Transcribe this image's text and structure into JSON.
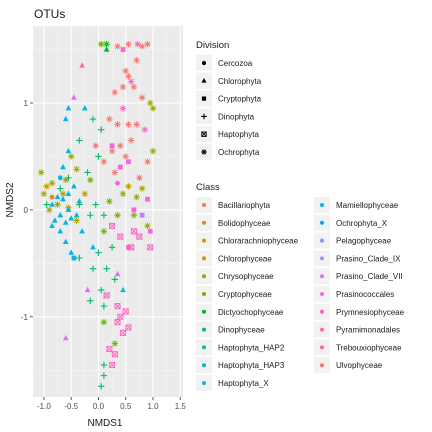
{
  "chart_data": {
    "type": "scatter",
    "title": "OTUs",
    "xlabel": "NMDS1",
    "ylabel": "NMDS2",
    "xlim": [
      -1.2,
      1.55
    ],
    "ylim": [
      -1.75,
      1.72
    ],
    "xticks": [
      -1.0,
      -0.5,
      0.0,
      0.5,
      1.0,
      1.5
    ],
    "xtick_labels": [
      "-1.0",
      "-0.5",
      "0.0",
      "0.5",
      "1.0",
      "1.5"
    ],
    "yticks": [
      -1,
      0,
      1
    ],
    "ytick_labels": [
      "-1",
      "0",
      "1"
    ],
    "grid": true,
    "legend_position": "right",
    "shape_legend": {
      "title": "Division",
      "items": [
        {
          "label": "Cercozoa",
          "shape": "circle"
        },
        {
          "label": "Chlorophyta",
          "shape": "triangle"
        },
        {
          "label": "Cryptophyta",
          "shape": "square"
        },
        {
          "label": "Dinophyta",
          "shape": "plus"
        },
        {
          "label": "Haptophyta",
          "shape": "boxed-x"
        },
        {
          "label": "Ochrophyta",
          "shape": "asterisk"
        }
      ]
    },
    "color_legend": {
      "title": "Class",
      "items": [
        {
          "label": "Bacillariophyta",
          "color": "#F8766D"
        },
        {
          "label": "Bolidophyceae",
          "color": "#E9842C"
        },
        {
          "label": "Chlorarachniophyceae",
          "color": "#D69100"
        },
        {
          "label": "Chlorophyceae",
          "color": "#BC9D00"
        },
        {
          "label": "Chrysophyceae",
          "color": "#9CA700"
        },
        {
          "label": "Cryptophyceae",
          "color": "#6FB000"
        },
        {
          "label": "Dictyochophyceae",
          "color": "#00B813"
        },
        {
          "label": "Dinophyceae",
          "color": "#00BD61"
        },
        {
          "label": "Haptophyta_HAP2",
          "color": "#00C08E"
        },
        {
          "label": "Haptophyta_HAP3",
          "color": "#00C0B4"
        },
        {
          "label": "Haptophyta_X",
          "color": "#00BDD4"
        },
        {
          "label": "Mamiellophyceae",
          "color": "#00B5EE"
        },
        {
          "label": "Ochrophyta_X",
          "color": "#00A7FF"
        },
        {
          "label": "Pelagophyceae",
          "color": "#7F96FF"
        },
        {
          "label": "Prasino_Clade_IX",
          "color": "#BC81FF"
        },
        {
          "label": "Prasino_Clade_VII",
          "color": "#E26EF7"
        },
        {
          "label": "Prasinococcales",
          "color": "#F863DF"
        },
        {
          "label": "Prymnesiophyceae",
          "color": "#FF62BF"
        },
        {
          "label": "Pyramimonadales",
          "color": "#FF6A9A"
        },
        {
          "label": "Trebouxiophyceae",
          "color": "#FF6C91"
        },
        {
          "label": "Ulvophyceae",
          "color": "#F8766D"
        }
      ]
    },
    "points": [
      {
        "x": 0.35,
        "y": 1.53,
        "shape": "asterisk",
        "color": "#F8766D"
      },
      {
        "x": 0.55,
        "y": 1.55,
        "shape": "asterisk",
        "color": "#F8766D"
      },
      {
        "x": 0.72,
        "y": 1.55,
        "shape": "asterisk",
        "color": "#FF62BF"
      },
      {
        "x": 0.8,
        "y": 1.53,
        "shape": "asterisk",
        "color": "#F8766D"
      },
      {
        "x": 0.9,
        "y": 1.55,
        "shape": "asterisk",
        "color": "#F8766D"
      },
      {
        "x": 0.7,
        "y": 1.4,
        "shape": "asterisk",
        "color": "#F8766D"
      },
      {
        "x": 0.05,
        "y": 1.55,
        "shape": "asterisk",
        "color": "#6FB000"
      },
      {
        "x": 0.15,
        "y": 1.55,
        "shape": "asterisk",
        "color": "#00B813"
      },
      {
        "x": 0.5,
        "y": 1.3,
        "shape": "asterisk",
        "color": "#F8766D"
      },
      {
        "x": 0.55,
        "y": 1.25,
        "shape": "asterisk",
        "color": "#F8766D"
      },
      {
        "x": 0.6,
        "y": 1.2,
        "shape": "asterisk",
        "color": "#FF62BF"
      },
      {
        "x": 0.45,
        "y": 1.15,
        "shape": "asterisk",
        "color": "#F8766D"
      },
      {
        "x": 0.3,
        "y": 1.1,
        "shape": "asterisk",
        "color": "#F8766D"
      },
      {
        "x": 0.65,
        "y": 1.15,
        "shape": "asterisk",
        "color": "#F8766D"
      },
      {
        "x": 0.8,
        "y": 1.05,
        "shape": "asterisk",
        "color": "#F8766D"
      },
      {
        "x": 0.95,
        "y": 1.0,
        "shape": "asterisk",
        "color": "#9CA700"
      },
      {
        "x": 1.0,
        "y": 0.95,
        "shape": "asterisk",
        "color": "#9CA700"
      },
      {
        "x": 0.45,
        "y": 0.95,
        "shape": "asterisk",
        "color": "#FF62BF"
      },
      {
        "x": 0.2,
        "y": 0.85,
        "shape": "asterisk",
        "color": "#F8766D"
      },
      {
        "x": 0.35,
        "y": 0.8,
        "shape": "asterisk",
        "color": "#F8766D"
      },
      {
        "x": 0.55,
        "y": 0.8,
        "shape": "asterisk",
        "color": "#F8766D"
      },
      {
        "x": 0.7,
        "y": 0.8,
        "shape": "asterisk",
        "color": "#F8766D"
      },
      {
        "x": 0.85,
        "y": 0.75,
        "shape": "asterisk",
        "color": "#FF62BF"
      },
      {
        "x": 0.25,
        "y": 0.55,
        "shape": "asterisk",
        "color": "#F8766D"
      },
      {
        "x": 0.4,
        "y": 0.6,
        "shape": "asterisk",
        "color": "#F8766D"
      },
      {
        "x": 0.6,
        "y": 0.65,
        "shape": "asterisk",
        "color": "#F8766D"
      },
      {
        "x": 0.1,
        "y": 0.45,
        "shape": "asterisk",
        "color": "#F8766D"
      },
      {
        "x": 0.5,
        "y": 0.5,
        "shape": "asterisk",
        "color": "#F8766D"
      },
      {
        "x": 0.3,
        "y": 0.35,
        "shape": "asterisk",
        "color": "#F8766D"
      },
      {
        "x": 0.9,
        "y": 0.45,
        "shape": "asterisk",
        "color": "#F8766D"
      },
      {
        "x": 1.0,
        "y": 0.55,
        "shape": "asterisk",
        "color": "#9CA700"
      },
      {
        "x": -0.05,
        "y": 0.6,
        "shape": "asterisk",
        "color": "#F8766D"
      },
      {
        "x": 0.75,
        "y": 0.3,
        "shape": "asterisk",
        "color": "#F8766D"
      },
      {
        "x": -0.5,
        "y": 0.5,
        "shape": "asterisk",
        "color": "#9CA700"
      },
      {
        "x": -0.4,
        "y": 0.38,
        "shape": "asterisk",
        "color": "#9CA700"
      },
      {
        "x": -0.15,
        "y": 0.28,
        "shape": "asterisk",
        "color": "#6FB000"
      },
      {
        "x": -1.05,
        "y": 0.35,
        "shape": "asterisk",
        "color": "#9CA700"
      },
      {
        "x": -0.95,
        "y": 0.22,
        "shape": "asterisk",
        "color": "#BC9D00"
      },
      {
        "x": -0.85,
        "y": 0.25,
        "shape": "asterisk",
        "color": "#9CA700"
      },
      {
        "x": -0.65,
        "y": 0.15,
        "shape": "asterisk",
        "color": "#9CA700"
      },
      {
        "x": -0.25,
        "y": 0.15,
        "shape": "asterisk",
        "color": "#BC9D00"
      },
      {
        "x": 0.45,
        "y": 0.15,
        "shape": "asterisk",
        "color": "#9CA700"
      },
      {
        "x": 0.55,
        "y": 0.22,
        "shape": "asterisk",
        "color": "#BC9D00"
      },
      {
        "x": 0.7,
        "y": 0.12,
        "shape": "asterisk",
        "color": "#9CA700"
      },
      {
        "x": 0.8,
        "y": 0.2,
        "shape": "asterisk",
        "color": "#9CA700"
      },
      {
        "x": 0.2,
        "y": 0.08,
        "shape": "asterisk",
        "color": "#6FB000"
      },
      {
        "x": -0.75,
        "y": 0.05,
        "shape": "asterisk",
        "color": "#9CA700"
      },
      {
        "x": -0.9,
        "y": 0.0,
        "shape": "asterisk",
        "color": "#9CA700"
      },
      {
        "x": -0.55,
        "y": 0.02,
        "shape": "asterisk",
        "color": "#BC9D00"
      },
      {
        "x": 0.35,
        "y": -0.05,
        "shape": "asterisk",
        "color": "#9CA700"
      },
      {
        "x": 0.65,
        "y": -0.05,
        "shape": "asterisk",
        "color": "#9CA700"
      },
      {
        "x": 0.9,
        "y": -0.15,
        "shape": "asterisk",
        "color": "#9CA700"
      },
      {
        "x": -0.4,
        "y": -0.1,
        "shape": "asterisk",
        "color": "#9CA700"
      },
      {
        "x": 0.1,
        "y": -0.2,
        "shape": "asterisk",
        "color": "#6FB000"
      },
      {
        "x": 0.3,
        "y": -1.25,
        "shape": "asterisk",
        "color": "#6FB000"
      },
      {
        "x": 0.1,
        "y": -1.05,
        "shape": "asterisk",
        "color": "#6FB000"
      },
      {
        "x": -0.6,
        "y": 0.28,
        "shape": "asterisk",
        "color": "#9CA700"
      },
      {
        "x": -1.0,
        "y": 0.15,
        "shape": "asterisk",
        "color": "#9CA700"
      },
      {
        "x": 0.15,
        "y": 1.5,
        "shape": "triangle",
        "color": "#00B813"
      },
      {
        "x": -0.3,
        "y": 1.35,
        "shape": "triangle",
        "color": "#FF6C91"
      },
      {
        "x": -0.45,
        "y": 1.05,
        "shape": "triangle",
        "color": "#E26EF7"
      },
      {
        "x": -0.55,
        "y": 0.95,
        "shape": "triangle",
        "color": "#00B5EE"
      },
      {
        "x": -0.25,
        "y": 0.95,
        "shape": "triangle",
        "color": "#00BDD4"
      },
      {
        "x": -0.6,
        "y": 0.85,
        "shape": "triangle",
        "color": "#00B5EE"
      },
      {
        "x": -0.55,
        "y": 0.55,
        "shape": "triangle",
        "color": "#00B5EE"
      },
      {
        "x": -0.65,
        "y": 0.4,
        "shape": "triangle",
        "color": "#00B5EE"
      },
      {
        "x": -0.8,
        "y": -0.1,
        "shape": "triangle",
        "color": "#00B5EE"
      },
      {
        "x": -0.7,
        "y": -0.05,
        "shape": "triangle",
        "color": "#00B5EE"
      },
      {
        "x": -0.6,
        "y": -0.12,
        "shape": "triangle",
        "color": "#00B5EE"
      },
      {
        "x": -0.5,
        "y": -0.08,
        "shape": "triangle",
        "color": "#00B5EE"
      },
      {
        "x": -0.4,
        "y": -0.05,
        "shape": "triangle",
        "color": "#00B5EE"
      },
      {
        "x": -0.65,
        "y": 0.1,
        "shape": "triangle",
        "color": "#00B5EE"
      },
      {
        "x": -0.55,
        "y": 0.15,
        "shape": "triangle",
        "color": "#00B5EE"
      },
      {
        "x": -0.75,
        "y": 0.12,
        "shape": "triangle",
        "color": "#00B5EE"
      },
      {
        "x": -0.85,
        "y": 0.05,
        "shape": "triangle",
        "color": "#00B5EE"
      },
      {
        "x": -0.35,
        "y": 0.08,
        "shape": "triangle",
        "color": "#00B5EE"
      },
      {
        "x": -0.45,
        "y": 0.22,
        "shape": "triangle",
        "color": "#00B5EE"
      },
      {
        "x": -0.7,
        "y": -0.2,
        "shape": "triangle",
        "color": "#00B5EE"
      },
      {
        "x": -0.85,
        "y": -0.15,
        "shape": "triangle",
        "color": "#00B5EE"
      },
      {
        "x": -0.6,
        "y": -0.3,
        "shape": "triangle",
        "color": "#00B5EE"
      },
      {
        "x": -0.5,
        "y": -0.4,
        "shape": "triangle",
        "color": "#00B5EE"
      },
      {
        "x": -0.6,
        "y": -1.2,
        "shape": "triangle",
        "color": "#E26EF7"
      },
      {
        "x": -0.2,
        "y": -0.75,
        "shape": "triangle",
        "color": "#E26EF7"
      },
      {
        "x": 0.35,
        "y": -0.6,
        "shape": "triangle",
        "color": "#E26EF7"
      },
      {
        "x": 0.45,
        "y": -0.75,
        "shape": "triangle",
        "color": "#00BDD4"
      },
      {
        "x": -0.1,
        "y": -0.35,
        "shape": "triangle",
        "color": "#00B5EE"
      },
      {
        "x": -0.3,
        "y": -0.2,
        "shape": "triangle",
        "color": "#00B5EE"
      },
      {
        "x": -0.55,
        "y": 0.0,
        "shape": "triangle",
        "color": "#00BDD4"
      },
      {
        "x": 0.45,
        "y": 1.5,
        "shape": "square",
        "color": "#F863DF"
      },
      {
        "x": 0.55,
        "y": 0.45,
        "shape": "square",
        "color": "#F863DF"
      },
      {
        "x": 0.4,
        "y": 0.4,
        "shape": "square",
        "color": "#F863DF"
      },
      {
        "x": 0.25,
        "y": 0.6,
        "shape": "square",
        "color": "#F863DF"
      },
      {
        "x": 0.65,
        "y": 0.0,
        "shape": "square",
        "color": "#F863DF"
      },
      {
        "x": 0.8,
        "y": -0.05,
        "shape": "square",
        "color": "#BC81FF"
      },
      {
        "x": 0.95,
        "y": -0.2,
        "shape": "square",
        "color": "#F863DF"
      },
      {
        "x": 0.55,
        "y": -0.35,
        "shape": "square",
        "color": "#F863DF"
      },
      {
        "x": -0.45,
        "y": -0.45,
        "shape": "square",
        "color": "#00BDD4"
      },
      {
        "x": 0.9,
        "y": 0.1,
        "shape": "square",
        "color": "#F863DF"
      },
      {
        "x": -0.1,
        "y": 0.85,
        "shape": "plus",
        "color": "#00BD61"
      },
      {
        "x": -0.35,
        "y": 0.65,
        "shape": "plus",
        "color": "#00BD61"
      },
      {
        "x": 0.0,
        "y": 0.5,
        "shape": "plus",
        "color": "#00BD61"
      },
      {
        "x": -0.2,
        "y": 0.35,
        "shape": "plus",
        "color": "#00BD61"
      },
      {
        "x": -0.55,
        "y": 0.3,
        "shape": "plus",
        "color": "#00BD61"
      },
      {
        "x": -0.7,
        "y": 0.2,
        "shape": "plus",
        "color": "#00BD61"
      },
      {
        "x": -0.95,
        "y": 0.05,
        "shape": "plus",
        "color": "#00BD61"
      },
      {
        "x": -0.15,
        "y": -0.05,
        "shape": "plus",
        "color": "#00BD61"
      },
      {
        "x": 0.1,
        "y": -0.05,
        "shape": "plus",
        "color": "#00BD61"
      },
      {
        "x": 0.25,
        "y": -0.35,
        "shape": "plus",
        "color": "#00BD61"
      },
      {
        "x": 0.0,
        "y": -0.4,
        "shape": "plus",
        "color": "#00BD61"
      },
      {
        "x": -0.1,
        "y": -0.55,
        "shape": "plus",
        "color": "#00BD61"
      },
      {
        "x": 0.15,
        "y": -0.55,
        "shape": "plus",
        "color": "#00BD61"
      },
      {
        "x": -0.35,
        "y": -0.45,
        "shape": "plus",
        "color": "#00BD61"
      },
      {
        "x": 0.3,
        "y": -0.65,
        "shape": "plus",
        "color": "#00BD61"
      },
      {
        "x": 0.05,
        "y": -0.75,
        "shape": "plus",
        "color": "#00BD61"
      },
      {
        "x": -0.15,
        "y": -0.85,
        "shape": "plus",
        "color": "#00BD61"
      },
      {
        "x": 0.1,
        "y": -0.9,
        "shape": "plus",
        "color": "#00BD61"
      },
      {
        "x": 0.1,
        "y": -1.45,
        "shape": "plus",
        "color": "#00BD61"
      },
      {
        "x": 0.1,
        "y": -1.55,
        "shape": "plus",
        "color": "#00BD61"
      },
      {
        "x": 0.05,
        "y": -1.65,
        "shape": "plus",
        "color": "#00BD61"
      },
      {
        "x": 0.05,
        "y": 0.75,
        "shape": "plus",
        "color": "#00BD61"
      },
      {
        "x": -0.05,
        "y": 0.05,
        "shape": "plus",
        "color": "#00BD61"
      },
      {
        "x": -0.35,
        "y": 0.05,
        "shape": "plus",
        "color": "#00BD61"
      },
      {
        "x": 0.2,
        "y": -1.3,
        "shape": "boxed-x",
        "color": "#FF62BF"
      },
      {
        "x": 0.25,
        "y": -1.45,
        "shape": "boxed-x",
        "color": "#FF62BF"
      },
      {
        "x": 0.3,
        "y": -1.35,
        "shape": "boxed-x",
        "color": "#FF62BF"
      },
      {
        "x": 0.35,
        "y": -1.05,
        "shape": "boxed-x",
        "color": "#FF62BF"
      },
      {
        "x": 0.4,
        "y": -1.0,
        "shape": "boxed-x",
        "color": "#FF62BF"
      },
      {
        "x": 0.35,
        "y": -0.9,
        "shape": "boxed-x",
        "color": "#FF62BF"
      },
      {
        "x": 0.5,
        "y": -0.95,
        "shape": "boxed-x",
        "color": "#FF62BF"
      },
      {
        "x": 0.55,
        "y": -1.1,
        "shape": "boxed-x",
        "color": "#FF62BF"
      },
      {
        "x": 0.45,
        "y": -1.15,
        "shape": "boxed-x",
        "color": "#FF62BF"
      },
      {
        "x": 0.6,
        "y": -0.35,
        "shape": "boxed-x",
        "color": "#FF62BF"
      },
      {
        "x": 0.25,
        "y": -0.15,
        "shape": "boxed-x",
        "color": "#FF62BF"
      },
      {
        "x": 0.4,
        "y": -0.25,
        "shape": "boxed-x",
        "color": "#FF62BF"
      },
      {
        "x": 0.65,
        "y": -0.2,
        "shape": "boxed-x",
        "color": "#FF62BF"
      },
      {
        "x": 0.75,
        "y": -0.25,
        "shape": "boxed-x",
        "color": "#FF62BF"
      },
      {
        "x": 0.95,
        "y": -0.35,
        "shape": "boxed-x",
        "color": "#FF62BF"
      },
      {
        "x": 0.15,
        "y": -0.8,
        "shape": "boxed-x",
        "color": "#FF62BF"
      },
      {
        "x": -0.85,
        "y": 0.12,
        "shape": "circle",
        "color": "#E9842C"
      },
      {
        "x": -0.7,
        "y": 0.3,
        "shape": "circle",
        "color": "#00BDD4"
      },
      {
        "x": 0.35,
        "y": 0.25,
        "shape": "circle",
        "color": "#F863DF"
      }
    ]
  }
}
